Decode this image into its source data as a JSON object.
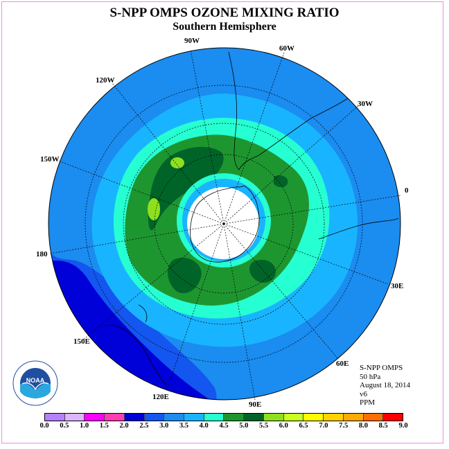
{
  "header": {
    "title": "S-NPP OMPS OZONE MIXING RATIO",
    "subtitle": "Southern Hemisphere"
  },
  "map": {
    "projection": "south-polar-stereographic",
    "longitude_labels": [
      {
        "text": "90W",
        "lon": -90
      },
      {
        "text": "60W",
        "lon": -60
      },
      {
        "text": "30W",
        "lon": -30
      },
      {
        "text": "0",
        "lon": 0
      },
      {
        "text": "30E",
        "lon": 30
      },
      {
        "text": "60E",
        "lon": 60
      },
      {
        "text": "90E",
        "lon": 90
      },
      {
        "text": "120E",
        "lon": 120
      },
      {
        "text": "150E",
        "lon": 150
      },
      {
        "text": "180",
        "lon": 180
      },
      {
        "text": "150W",
        "lon": -150
      },
      {
        "text": "120W",
        "lon": -120
      }
    ],
    "field_colors": {
      "3.0-3.5": "#19b4ff",
      "2.5-3.0": "#1b8cf0",
      "2.0-2.5": "#1456f0",
      "1.5-2.0": "#0000d8",
      "3.5-4.0": "#26ffd2",
      "4.0-4.5": "#1e9630",
      "4.5-5.0": "#006428",
      "5.0-5.5": "#8ee01e",
      "no-data": "#ffffff"
    }
  },
  "info": {
    "lines": [
      "S-NPP OMPS",
      "50 hPa",
      "August 18, 2014",
      "v6",
      "PPM"
    ]
  },
  "colorbar": {
    "unit": "PPM",
    "ticks": [
      "0.0",
      "0.5",
      "1.0",
      "1.5",
      "2.0",
      "2.5",
      "3.0",
      "3.5",
      "4.0",
      "4.5",
      "5.0",
      "5.5",
      "6.0",
      "6.5",
      "7.0",
      "7.5",
      "8.0",
      "8.5",
      "9.0"
    ],
    "colors": [
      "#b482ff",
      "#dcb4ff",
      "#ff00ff",
      "#ff3cb4",
      "#0000d8",
      "#1456f0",
      "#1b8cf0",
      "#19b4ff",
      "#26ffd2",
      "#1e9630",
      "#006428",
      "#8ee01e",
      "#c8ff1e",
      "#ffff00",
      "#ffd200",
      "#ffaa00",
      "#ff6e00",
      "#ff0000",
      "#8c5a3c"
    ]
  },
  "logo": {
    "text": "NOAA",
    "ring_text": "NATIONAL OCEANIC AND ATMOSPHERIC ADMINISTRATION",
    "ring_text_bottom": "U.S. DEPARTMENT OF COMMERCE"
  }
}
